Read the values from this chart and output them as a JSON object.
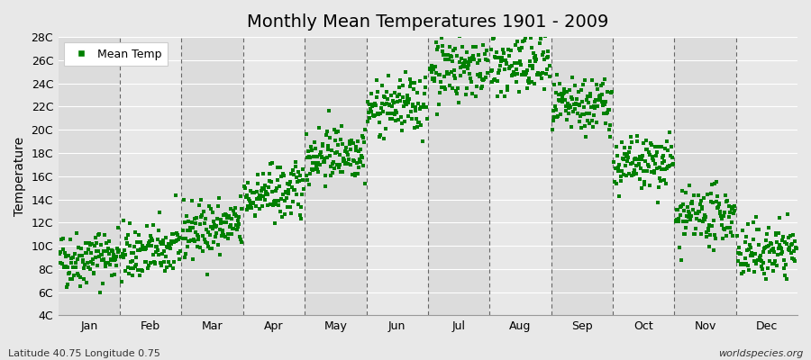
{
  "title": "Monthly Mean Temperatures 1901 - 2009",
  "ylabel": "Temperature",
  "subtitle_left": "Latitude 40.75 Longitude 0.75",
  "subtitle_right": "worldspecies.org",
  "legend_label": "Mean Temp",
  "marker_color": "#008000",
  "marker": "s",
  "marker_size": 2.5,
  "ylim": [
    4,
    28
  ],
  "ytick_labels": [
    "4C",
    "6C",
    "8C",
    "10C",
    "12C",
    "14C",
    "16C",
    "18C",
    "20C",
    "22C",
    "24C",
    "26C",
    "28C"
  ],
  "ytick_values": [
    4,
    6,
    8,
    10,
    12,
    14,
    16,
    18,
    20,
    22,
    24,
    26,
    28
  ],
  "months": [
    "Jan",
    "Feb",
    "Mar",
    "Apr",
    "May",
    "Jun",
    "Jul",
    "Aug",
    "Sep",
    "Oct",
    "Nov",
    "Dec"
  ],
  "background_color": "#e8e8e8",
  "band_colors": [
    "#e0e0e0",
    "#eaeaea"
  ],
  "dashed_line_color": "#666666",
  "num_years": 109,
  "monthly_mean_temps": [
    9.0,
    9.5,
    11.5,
    14.5,
    18.0,
    22.0,
    25.5,
    25.5,
    22.0,
    17.0,
    12.5,
    9.5
  ],
  "monthly_std_temps": [
    1.2,
    1.2,
    1.2,
    1.2,
    1.2,
    1.2,
    1.5,
    1.5,
    1.2,
    1.2,
    1.2,
    1.2
  ],
  "seed": 42
}
